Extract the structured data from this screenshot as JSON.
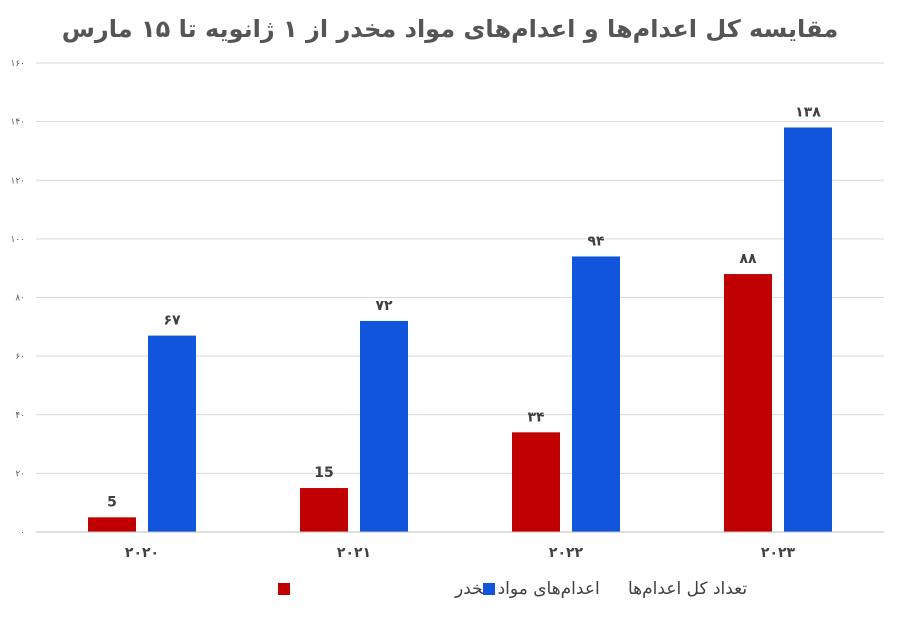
{
  "chart_data": {
    "type": "bar",
    "title": "مقایسه کل اعدام‌ها و اعدام‌های مواد مخدر از ۱ ژانویه تا ۱۵ مارس",
    "categories": [
      "۲۰۲۰",
      "۲۰۲۱",
      "۲۰۲۲",
      "۲۰۲۳"
    ],
    "series": [
      {
        "name": "اعدام‌های مواد مخدر",
        "color": "#C00000",
        "values": [
          5,
          15,
          34,
          88
        ],
        "data_labels": [
          "5",
          "15",
          "۳۴",
          "۸۸"
        ]
      },
      {
        "name": "تعداد کل اعدام‌ها",
        "color": "#1055DB",
        "values": [
          67,
          72,
          94,
          138
        ],
        "data_labels": [
          "۶۷",
          "۷۲",
          "۹۴",
          "۱۳۸"
        ]
      }
    ],
    "ylim": [
      0,
      160
    ],
    "yticks": [
      0,
      20,
      40,
      60,
      80,
      100,
      120,
      140,
      160
    ],
    "ytick_labels": [
      "۰",
      "۲۰",
      "۴۰",
      "۶۰",
      "۸۰",
      "۱۰۰",
      "۱۲۰",
      "۱۴۰",
      "۱۶۰"
    ],
    "grid": true,
    "legend_position": "bottom",
    "xlabel": "",
    "ylabel": ""
  }
}
